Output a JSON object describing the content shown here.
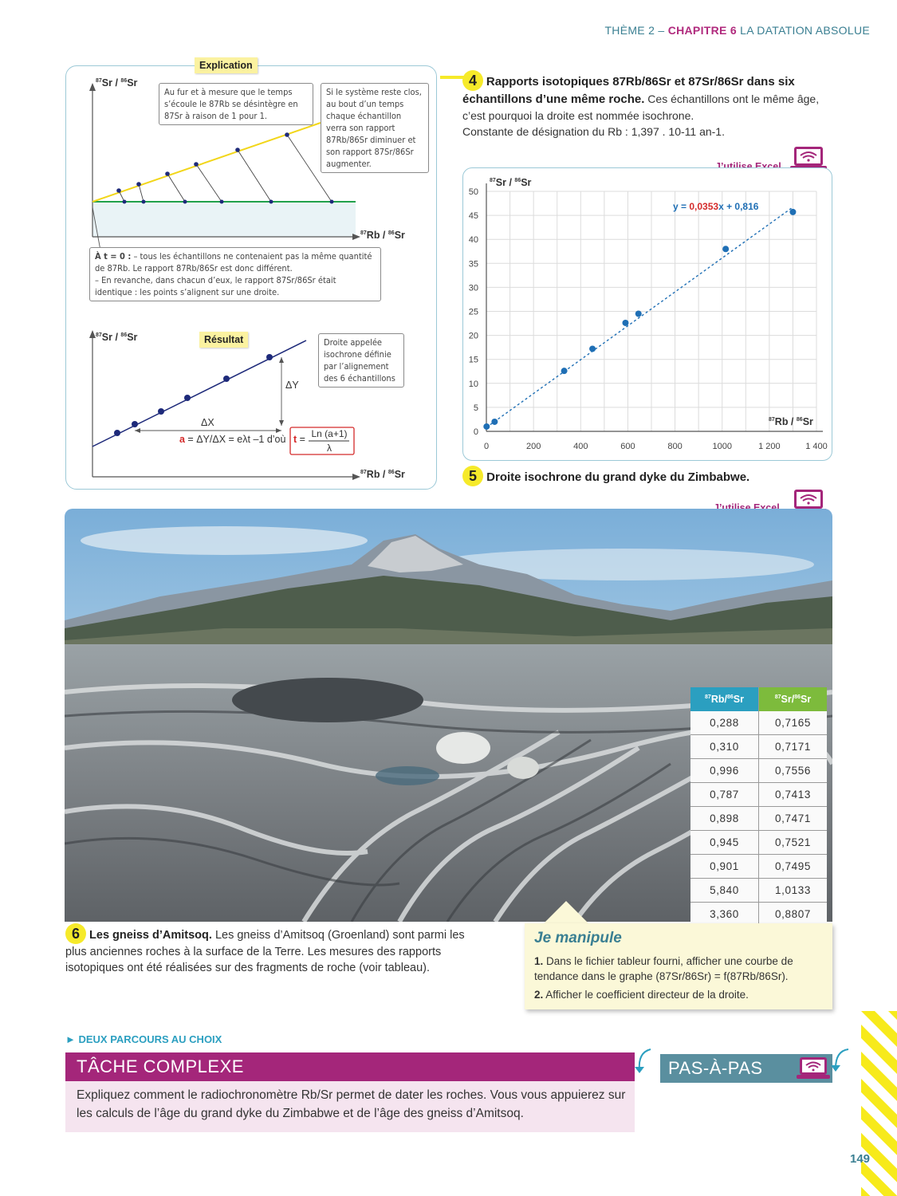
{
  "header": {
    "theme": "THÈME 2 –",
    "chapter": "CHAPITRE 6",
    "title": "LA DATATION ABSOLUE"
  },
  "explication": {
    "tag": "Explication",
    "y_axis_iso": "87",
    "y_axis_label": "Sr / ",
    "y_axis_iso2": "86",
    "y_axis_el2": "Sr",
    "x_axis_iso": "87",
    "x_axis_label": "Rb / ",
    "x_axis_iso2": "86",
    "x_axis_el2": "Sr",
    "note_left": "Au fur et à mesure que le temps s’écoule le 87Rb se désintègre en 87Sr à raison de 1 pour 1.",
    "note_right": "Si le système reste clos, au bout d’un temps chaque échantillon verra son rapport 87Rb/86Sr diminuer et son rapport 87Sr/86Sr augmenter.",
    "t0_lead": "À t = 0 :",
    "t0_line1": " – tous les échantillons ne contenaient pas la même quantité de 87Rb. Le rapport 87Rb/86Sr est donc différent.",
    "t0_line2": "– En revanche, dans chacun d’eux, le rapport 87Sr/86Sr était identique : les points s’alignent sur une droite."
  },
  "resultat": {
    "tag": "Résultat",
    "note": "Droite appelée isochrone définie par l’alignement des 6 échantillons",
    "delta_y": "ΔY",
    "delta_x": "ΔX",
    "a_letter": "a",
    "formula": " = ΔY/ΔX = eλt –1 d’où",
    "t_letter": "t",
    "t_eq": " = ",
    "fraction_num": "Ln (a+1)",
    "fraction_den": "λ"
  },
  "doc4": {
    "number": "4",
    "title": "Rapports isotopiques 87Rb/86Sr et 87Sr/86Sr dans six échantillons d’une même roche.",
    "text": " Ces échantillons ont le même âge, c’est pourquoi la droite est nommée isochrone.",
    "constant": "Constante de désignation du Rb : 1,397 . 10-11 an-1."
  },
  "excel_label": "J’utilise Excel",
  "chart_data": {
    "type": "scatter",
    "ylabel": "87Sr / 86Sr",
    "xlabel": "87Rb / 86Sr",
    "xlim": [
      0,
      1400
    ],
    "ylim": [
      0,
      50
    ],
    "x_ticks": [
      "0",
      "200",
      "400",
      "600",
      "800",
      "1000",
      "1 200",
      "1 400"
    ],
    "y_ticks": [
      "0",
      "5",
      "10",
      "15",
      "20",
      "25",
      "30",
      "35",
      "40",
      "45",
      "50"
    ],
    "grid": true,
    "equation_prefix": "y = ",
    "equation_slope": "0,0353",
    "equation_suffix": "x + 0,816",
    "x": [
      1,
      35,
      330,
      450,
      590,
      645,
      1015,
      1300
    ],
    "y": [
      1,
      2,
      12.6,
      17.2,
      22.6,
      24.5,
      38,
      45.7
    ],
    "trendline": {
      "slope": 0.0353,
      "intercept": 0.816,
      "x_range": [
        0,
        1300
      ]
    }
  },
  "doc5": {
    "number": "5",
    "title": "Droite isochrone du grand dyke du Zimbabwe."
  },
  "table": {
    "headers": [
      "87Rb/86Sr",
      "87Sr/86Sr"
    ],
    "header_colors": [
      "#2b9fc0",
      "#7dbb3c"
    ],
    "rows": [
      [
        "0,288",
        "0,7165"
      ],
      [
        "0,310",
        "0,7171"
      ],
      [
        "0,996",
        "0,7556"
      ],
      [
        "0,787",
        "0,7413"
      ],
      [
        "0,898",
        "0,7471"
      ],
      [
        "0,945",
        "0,7521"
      ],
      [
        "0,901",
        "0,7495"
      ],
      [
        "5,840",
        "1,0133"
      ],
      [
        "3,360",
        "0,8807"
      ]
    ]
  },
  "doc6": {
    "number": "6",
    "title": "Les gneiss d’Amitsoq.",
    "text": " Les gneiss d’Amitsoq (Groenland) sont parmi les plus anciennes roches à la surface de la Terre. Les mesures des rapports isotopiques ont été réalisées sur des fragments de roche (voir tableau)."
  },
  "manipule": {
    "title": "Je manipule",
    "item1_num": "1.",
    "item1": " Dans le fichier tableur fourni, afficher une courbe de tendance dans le graphe (87Sr/86Sr) = f(87Rb/86Sr).",
    "item2_num": "2.",
    "item2": " Afficher le coefficient directeur de la droite."
  },
  "parcours": "DEUX PARCOURS AU CHOIX",
  "tache": {
    "title": "TÂCHE COMPLEXE",
    "text": "Expliquez comment le radiochronomètre Rb/Sr permet de dater les roches. Vous vous appuierez sur les calculs de l’âge du grand dyke du Zimbabwe et de l’âge des gneiss d’Amitsoq."
  },
  "pas_a_pas": "PAS-À-PAS",
  "page_number": "149",
  "colors": {
    "teal": "#3a7f92",
    "magenta": "#a4267a",
    "yellow": "#f6ea2a",
    "blue_points": "#1f6fb5",
    "navy_points": "#1e2a7a"
  }
}
